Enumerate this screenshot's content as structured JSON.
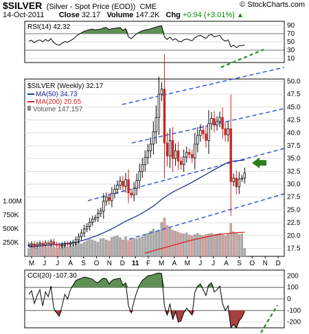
{
  "header": {
    "symbol": "$SILVER",
    "name": "(Silver - Spot Price (EOD))",
    "exchange": "CME",
    "date": "14-Oct-2011",
    "close_label": "Close",
    "close": "32.17",
    "volume_label": "Volume",
    "volume": "147.2K",
    "chg_label": "Chg",
    "chg": "+0.94 (+3.01%)",
    "brand": "© StockCharts.com"
  },
  "rsi_panel": {
    "label": "RSI(14) 42.32",
    "ticks": [
      "90",
      "70",
      "50",
      "30",
      "10"
    ],
    "tick_values": [
      90,
      70,
      50,
      30,
      10
    ],
    "ylim": [
      0,
      100
    ]
  },
  "cci_panel": {
    "label": "CCI(20) -107.30",
    "ticks": [
      "200",
      "100",
      "0",
      "-100",
      "-200"
    ],
    "tick_values": [
      200,
      100,
      0,
      -100,
      -200
    ],
    "ylim": [
      -250,
      250
    ]
  },
  "legend": {
    "series": "$SILVER (Weekly) 32.17",
    "ma50": "MA(50) 34.73",
    "ma200": "MA(200) 20.65",
    "volume": "Volume 147,157"
  },
  "colors": {
    "ma50": "#1f2f8f",
    "ma200": "#d42020",
    "channel": "#3355dd",
    "arrow": "#2e7d1e",
    "fill_green": "#5e8f55",
    "fill_red": "#a84040",
    "vol_up": "#aaaaaa",
    "vol_down": "#d5a0a0"
  },
  "chart_data": {
    "type": "candlestick",
    "title": "$SILVER (Weekly)",
    "x_ticks": [
      "M",
      "J",
      "J",
      "A",
      "S",
      "O",
      "N",
      "D",
      "11",
      "F",
      "M",
      "A",
      "M",
      "J",
      "J",
      "A",
      "S",
      "O",
      "N",
      "D"
    ],
    "price_ticks": [
      "50.0",
      "47.5",
      "45.0",
      "42.5",
      "40.0",
      "37.5",
      "35.0",
      "32.5",
      "30.0",
      "27.5",
      "25.0",
      "22.5",
      "20.0",
      "17.5"
    ],
    "price_tick_values": [
      50,
      47.5,
      45,
      42.5,
      40,
      37.5,
      35,
      32.5,
      30,
      27.5,
      25,
      22.5,
      20,
      17.5
    ],
    "volume_ticks": [
      "1.00M",
      "750K",
      "500K",
      "250K"
    ],
    "volume_tick_values": [
      1000000,
      750000,
      500000,
      250000
    ],
    "ylim": [
      16.5,
      51
    ],
    "weeks": 79,
    "close": [
      18.2,
      18.4,
      18.0,
      18.3,
      18.5,
      18.2,
      18.6,
      18.4,
      18.8,
      18.3,
      18.1,
      18.0,
      18.2,
      18.4,
      18.3,
      18.5,
      18.7,
      19.2,
      19.8,
      20.5,
      21.3,
      21.8,
      22.6,
      23.2,
      23.5,
      24.3,
      24.8,
      26.7,
      27.5,
      26.8,
      28.2,
      29.0,
      29.8,
      30.6,
      29.6,
      30.9,
      28.3,
      27.9,
      29.2,
      30.7,
      32.5,
      33.8,
      35.2,
      36.5,
      37.8,
      40.2,
      43.0,
      47.5,
      48.5,
      38.0,
      35.5,
      38.5,
      35.0,
      36.5,
      34.5,
      33.8,
      35.3,
      36.2,
      35.8,
      35.1,
      37.8,
      39.5,
      40.5,
      39.8,
      38.5,
      41.8,
      42.8,
      41.5,
      42.2,
      43.0,
      40.8,
      39.6,
      40.8,
      30.5,
      31.2,
      29.5,
      31.0,
      31.2,
      32.17
    ],
    "ma50": [
      17.8,
      17.85,
      17.9,
      17.95,
      18.0,
      18.05,
      18.1,
      18.15,
      18.2,
      18.25,
      18.3,
      18.35,
      18.4,
      18.45,
      18.5,
      18.55,
      18.62,
      18.72,
      18.85,
      19.0,
      19.15,
      19.32,
      19.5,
      19.7,
      19.9,
      20.1,
      20.32,
      20.55,
      20.8,
      21.05,
      21.32,
      21.6,
      21.9,
      22.2,
      22.5,
      22.8,
      23.05,
      23.3,
      23.55,
      23.82,
      24.1,
      24.4,
      24.72,
      25.05,
      25.4,
      25.75,
      26.15,
      26.6,
      27.05,
      27.45,
      27.8,
      28.15,
      28.45,
      28.75,
      29.02,
      29.28,
      29.55,
      29.82,
      30.1,
      30.38,
      30.68,
      30.98,
      31.3,
      31.6,
      31.9,
      32.2,
      32.52,
      32.82,
      33.12,
      33.42,
      33.72,
      34.0,
      34.25,
      34.4,
      34.5,
      34.55,
      34.6,
      34.66,
      34.73
    ],
    "ma200": [
      null,
      null,
      null,
      null,
      null,
      null,
      null,
      null,
      null,
      null,
      null,
      null,
      null,
      null,
      null,
      null,
      null,
      null,
      null,
      null,
      null,
      null,
      null,
      null,
      null,
      null,
      null,
      null,
      null,
      null,
      null,
      null,
      null,
      null,
      null,
      null,
      null,
      null,
      null,
      null,
      null,
      null,
      16.6,
      16.75,
      16.9,
      17.05,
      17.2,
      17.35,
      17.5,
      17.65,
      17.8,
      17.95,
      18.1,
      18.25,
      18.4,
      18.55,
      18.7,
      18.85,
      19.0,
      19.12,
      19.24,
      19.36,
      19.48,
      19.6,
      19.72,
      19.84,
      19.96,
      20.06,
      20.14,
      20.22,
      20.3,
      20.36,
      20.42,
      20.48,
      20.52,
      20.56,
      20.6,
      20.62,
      20.65
    ],
    "volume": [
      140000,
      210000,
      180000,
      150000,
      170000,
      200000,
      160000,
      180000,
      190000,
      170000,
      150000,
      160000,
      180000,
      200000,
      170000,
      190000,
      210000,
      250000,
      270000,
      230000,
      260000,
      290000,
      310000,
      300000,
      280000,
      260000,
      320000,
      330000,
      300000,
      280000,
      350000,
      360000,
      380000,
      340000,
      300000,
      360000,
      290000,
      310000,
      330000,
      320000,
      340000,
      360000,
      400000,
      420000,
      460000,
      500000,
      450000,
      480000,
      620000,
      700000,
      560000,
      520000,
      480000,
      460000,
      440000,
      420000,
      410000,
      430000,
      390000,
      380000,
      400000,
      420000,
      390000,
      380000,
      400000,
      410000,
      420000,
      400000,
      410000,
      420000,
      390000,
      380000,
      400000,
      600000,
      450000,
      420000,
      400000,
      410000,
      147157
    ],
    "rsi": [
      52,
      54,
      48,
      53,
      55,
      50,
      56,
      52,
      58,
      48,
      44,
      42,
      47,
      51,
      49,
      53,
      57,
      63,
      68,
      72,
      76,
      78,
      80,
      81,
      79,
      80,
      81,
      84,
      85,
      80,
      82,
      83,
      84,
      85,
      78,
      82,
      62,
      58,
      64,
      70,
      74,
      77,
      79,
      80,
      82,
      84,
      86,
      88,
      89,
      62,
      56,
      62,
      54,
      58,
      52,
      50,
      55,
      57,
      55,
      53,
      60,
      64,
      66,
      62,
      58,
      66,
      68,
      62,
      64,
      66,
      56,
      52,
      55,
      38,
      42,
      36,
      41,
      41,
      42.32
    ],
    "cci": [
      40,
      70,
      -40,
      30,
      80,
      -60,
      60,
      20,
      110,
      -80,
      -120,
      -150,
      -60,
      40,
      0,
      80,
      120,
      160,
      170,
      180,
      190,
      185,
      180,
      170,
      150,
      140,
      165,
      180,
      175,
      130,
      160,
      170,
      175,
      180,
      120,
      140,
      -60,
      -120,
      -20,
      60,
      120,
      160,
      180,
      200,
      205,
      210,
      220,
      225,
      220,
      -60,
      -140,
      -40,
      -180,
      -110,
      -200,
      -190,
      -120,
      -80,
      -110,
      -140,
      60,
      110,
      130,
      80,
      30,
      120,
      140,
      60,
      80,
      110,
      -40,
      -100,
      -60,
      -250,
      -220,
      -270,
      -190,
      -160,
      -107.3
    ]
  }
}
